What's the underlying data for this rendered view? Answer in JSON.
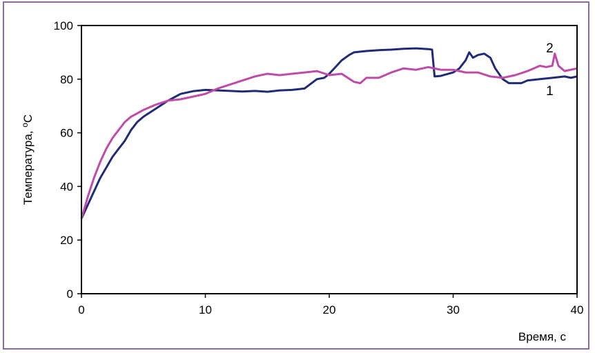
{
  "chart_data": {
    "type": "line",
    "xlabel": "Время, с",
    "ylabel_text": "Температура, ",
    "ylabel_sup": "o",
    "ylabel_unit": "C",
    "xlim": [
      0,
      40
    ],
    "ylim": [
      0,
      100
    ],
    "x_ticks": [
      0,
      10,
      20,
      30,
      40
    ],
    "y_ticks": [
      0,
      20,
      40,
      60,
      80,
      100
    ],
    "grid": false,
    "legend": "inline labels",
    "series": [
      {
        "name": "1",
        "color": "#1f2a78",
        "points": [
          [
            0,
            28
          ],
          [
            0.5,
            33
          ],
          [
            1,
            38
          ],
          [
            1.5,
            43
          ],
          [
            2,
            47
          ],
          [
            2.5,
            51
          ],
          [
            3,
            54
          ],
          [
            3.5,
            57
          ],
          [
            4,
            61
          ],
          [
            4.5,
            64
          ],
          [
            5,
            66
          ],
          [
            6,
            69
          ],
          [
            7,
            72
          ],
          [
            8,
            74.5
          ],
          [
            9,
            75.5
          ],
          [
            10,
            76
          ],
          [
            11,
            75.8
          ],
          [
            12,
            75.6
          ],
          [
            13,
            75.4
          ],
          [
            14,
            75.6
          ],
          [
            15,
            75.3
          ],
          [
            16,
            75.8
          ],
          [
            17,
            76
          ],
          [
            18,
            76.5
          ],
          [
            19,
            80
          ],
          [
            19.6,
            80.5
          ],
          [
            20,
            82
          ],
          [
            20.6,
            85
          ],
          [
            21,
            87
          ],
          [
            21.6,
            89
          ],
          [
            22,
            90
          ],
          [
            23,
            90.5
          ],
          [
            24,
            90.8
          ],
          [
            25,
            91
          ],
          [
            26,
            91.3
          ],
          [
            27,
            91.5
          ],
          [
            28,
            91.2
          ],
          [
            28.3,
            91
          ],
          [
            28.5,
            81
          ],
          [
            29,
            81.2
          ],
          [
            30,
            82.5
          ],
          [
            30.5,
            84
          ],
          [
            31,
            87
          ],
          [
            31.3,
            90
          ],
          [
            31.6,
            88
          ],
          [
            32,
            89
          ],
          [
            32.5,
            89.5
          ],
          [
            33,
            88
          ],
          [
            33.4,
            84
          ],
          [
            34,
            80
          ],
          [
            34.5,
            78.5
          ],
          [
            35,
            78.5
          ],
          [
            35.5,
            78.5
          ],
          [
            36,
            79.5
          ],
          [
            37,
            80
          ],
          [
            38,
            80.5
          ],
          [
            39,
            81
          ],
          [
            39.5,
            80.5
          ],
          [
            40,
            81
          ]
        ]
      },
      {
        "name": "2",
        "color": "#c04aa8",
        "points": [
          [
            0,
            28
          ],
          [
            0.5,
            36
          ],
          [
            1,
            43
          ],
          [
            1.5,
            49
          ],
          [
            2,
            54
          ],
          [
            2.5,
            58
          ],
          [
            3,
            61
          ],
          [
            3.5,
            64
          ],
          [
            4,
            66
          ],
          [
            5,
            68.5
          ],
          [
            6,
            70.5
          ],
          [
            7,
            72
          ],
          [
            8,
            72.5
          ],
          [
            9,
            73.5
          ],
          [
            10,
            74.5
          ],
          [
            11,
            76.5
          ],
          [
            12,
            78
          ],
          [
            13,
            79.5
          ],
          [
            14,
            81
          ],
          [
            15,
            82
          ],
          [
            16,
            81.5
          ],
          [
            17,
            82
          ],
          [
            18,
            82.5
          ],
          [
            19,
            83
          ],
          [
            20,
            81.5
          ],
          [
            21,
            82
          ],
          [
            22,
            79
          ],
          [
            22.5,
            78.5
          ],
          [
            23,
            80.5
          ],
          [
            24,
            80.5
          ],
          [
            25,
            82.5
          ],
          [
            26,
            84
          ],
          [
            27,
            83.5
          ],
          [
            28,
            84.5
          ],
          [
            29,
            83.5
          ],
          [
            30,
            83.5
          ],
          [
            31,
            82.5
          ],
          [
            32,
            82.5
          ],
          [
            33,
            81
          ],
          [
            34,
            80.5
          ],
          [
            35,
            81.5
          ],
          [
            36,
            83
          ],
          [
            37,
            85
          ],
          [
            37.5,
            84.5
          ],
          [
            38,
            85
          ],
          [
            38.2,
            89.5
          ],
          [
            38.5,
            85
          ],
          [
            39,
            83
          ],
          [
            40,
            84
          ]
        ]
      }
    ],
    "series_labels": [
      {
        "text": "1",
        "x": 37.5,
        "y": 74
      },
      {
        "text": "2",
        "x": 37.5,
        "y": 90
      }
    ]
  }
}
